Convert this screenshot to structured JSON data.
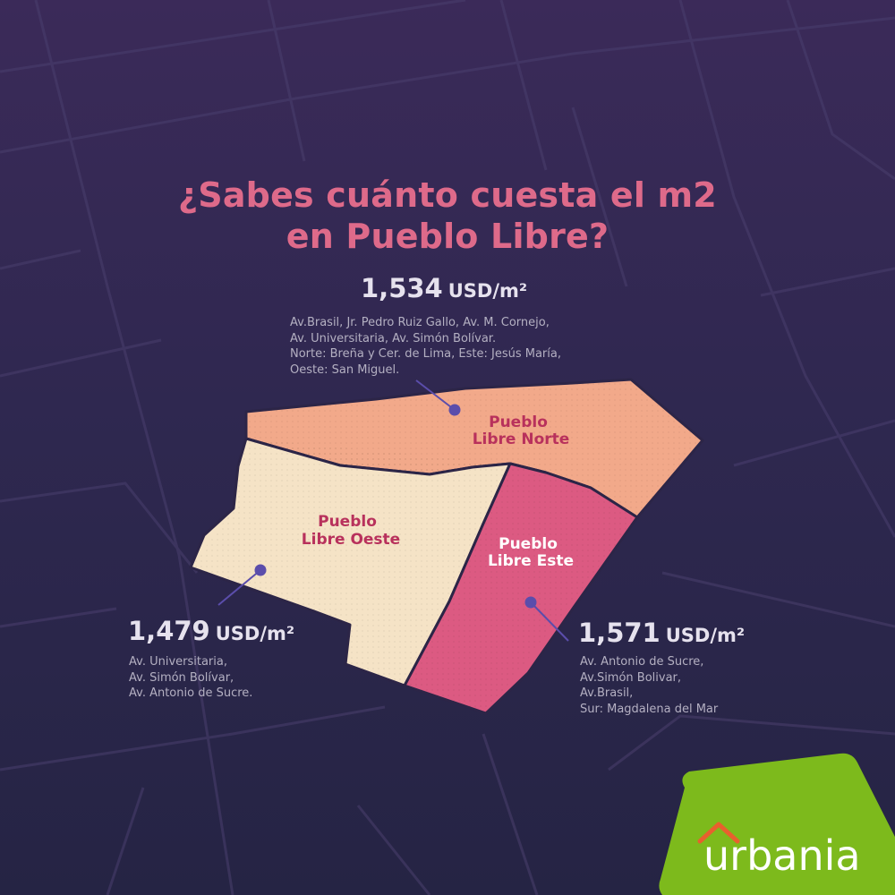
{
  "title": {
    "line1": "¿Sabes cuánto cuesta el m2",
    "line2": "en Pueblo Libre?"
  },
  "zones": {
    "norte": {
      "name_line1": "Pueblo",
      "name_line2": "Libre Norte",
      "price": "1,534",
      "unit": "USD/m²",
      "desc": [
        "Av.Brasil, Jr. Pedro Ruiz Gallo, Av. M. Cornejo,",
        "Av. Universitaria, Av. Simón Bolívar.",
        "Norte: Breña y Cer. de Lima, Este: Jesús María,",
        "Oeste: San Miguel."
      ],
      "color": "#f2a98a"
    },
    "oeste": {
      "name_line1": "Pueblo",
      "name_line2": "Libre Oeste",
      "price": "1,479",
      "unit": "USD/m²",
      "desc": [
        "Av. Universitaria,",
        "Av. Simón Bolívar,",
        "Av. Antonio de Sucre."
      ],
      "color": "#f5e3c6"
    },
    "este": {
      "name_line1": "Pueblo",
      "name_line2": "Libre Este",
      "price": "1,571",
      "unit": "USD/m²",
      "desc": [
        "Av. Antonio de Sucre,",
        "Av.Simón Bolivar,",
        "Av.Brasil,",
        "Sur: Magdalena del Mar"
      ],
      "color": "#dc5a82"
    }
  },
  "brand": {
    "name": "urbania",
    "color": "#7dba1c"
  },
  "colors": {
    "title": "#de6a8a",
    "zone_label": "#b8315c",
    "border": "#2c2547",
    "marker": "#5b4dab"
  }
}
